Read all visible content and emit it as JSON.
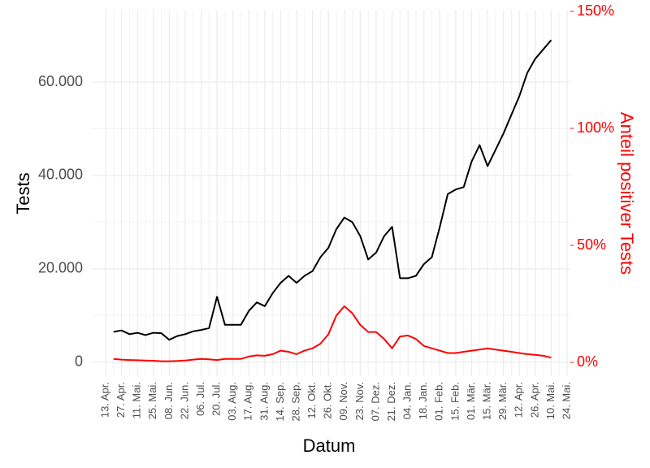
{
  "chart_data": {
    "type": "line",
    "x_label": "Datum",
    "y_label": "Tests",
    "y2_label": "Anteil positiver Tests",
    "categories": [
      "13. Apr.",
      null,
      "27. Apr.",
      null,
      "11. Mai.",
      null,
      "25. Mai.",
      null,
      "08. Jun.",
      null,
      "22. Jun.",
      null,
      "06. Jul.",
      null,
      "20. Jul.",
      null,
      "03. Aug.",
      null,
      "17. Aug.",
      null,
      "31. Aug.",
      null,
      "14. Sep.",
      null,
      "28. Sep.",
      null,
      "12. Okt.",
      null,
      "26. Okt.",
      null,
      "09. Nov.",
      null,
      "23. Nov.",
      null,
      "07. Dez.",
      null,
      "21. Dez.",
      null,
      "04. Jan.",
      null,
      "18. Jan.",
      null,
      "01. Feb.",
      null,
      "15. Feb.",
      null,
      "01. Mär.",
      null,
      "15. Mär.",
      null,
      "29. Mär.",
      null,
      "12. Apr.",
      null,
      "26. Apr.",
      null,
      "10. Mai.",
      null,
      "24. Mai."
    ],
    "series": [
      {
        "color": "#000000",
        "values": [
          null,
          6500,
          6800,
          6000,
          6300,
          5800,
          6300,
          6200,
          4800,
          5600,
          6000,
          6600,
          6900,
          7300,
          14000,
          8000,
          8000,
          8000,
          11000,
          12800,
          12000,
          14800,
          17000,
          18500,
          17000,
          18500,
          19500,
          22500,
          24500,
          28500,
          31000,
          30000,
          27000,
          22000,
          23500,
          27000,
          29000,
          18000,
          18000,
          18500,
          21000,
          22500,
          29000,
          36000,
          37000,
          37500,
          43000,
          46500,
          42000,
          45500,
          49000,
          53000,
          57000,
          62000,
          65000,
          67000,
          69000,
          null,
          null
        ]
      },
      {
        "color": "#ff0000",
        "axis": "y2",
        "values": [
          null,
          1.5,
          1.2,
          1,
          0.9,
          0.8,
          0.7,
          0.5,
          0.5,
          0.6,
          0.8,
          1.2,
          1.5,
          1.3,
          1,
          1.5,
          1.5,
          1.5,
          2.5,
          3,
          2.8,
          3.5,
          5,
          4.5,
          3.5,
          5,
          6,
          8,
          12,
          20,
          24,
          21,
          16,
          13,
          13,
          10,
          6,
          11,
          11.5,
          10,
          7,
          6,
          5,
          4,
          4,
          4.5,
          5,
          5.5,
          6,
          5.5,
          5,
          4.5,
          4,
          3.5,
          3.2,
          2.8,
          2,
          null,
          null
        ]
      }
    ],
    "ylim": [
      -3000,
      75500
    ],
    "yticks": [
      0,
      {
        "value": 20000,
        "label": "20.000"
      },
      {
        "value": 40000,
        "label": "40.000"
      },
      {
        "value": 60000,
        "label": "60.000"
      }
    ],
    "y2lim": [
      -5.9,
      150.7
    ],
    "y2ticks": [
      {
        "value": 0,
        "label": "0%"
      },
      {
        "value": 50,
        "label": "50%"
      },
      {
        "value": 100,
        "label": "100%"
      },
      {
        "value": 150,
        "label": "150%"
      }
    ],
    "grid": true
  }
}
